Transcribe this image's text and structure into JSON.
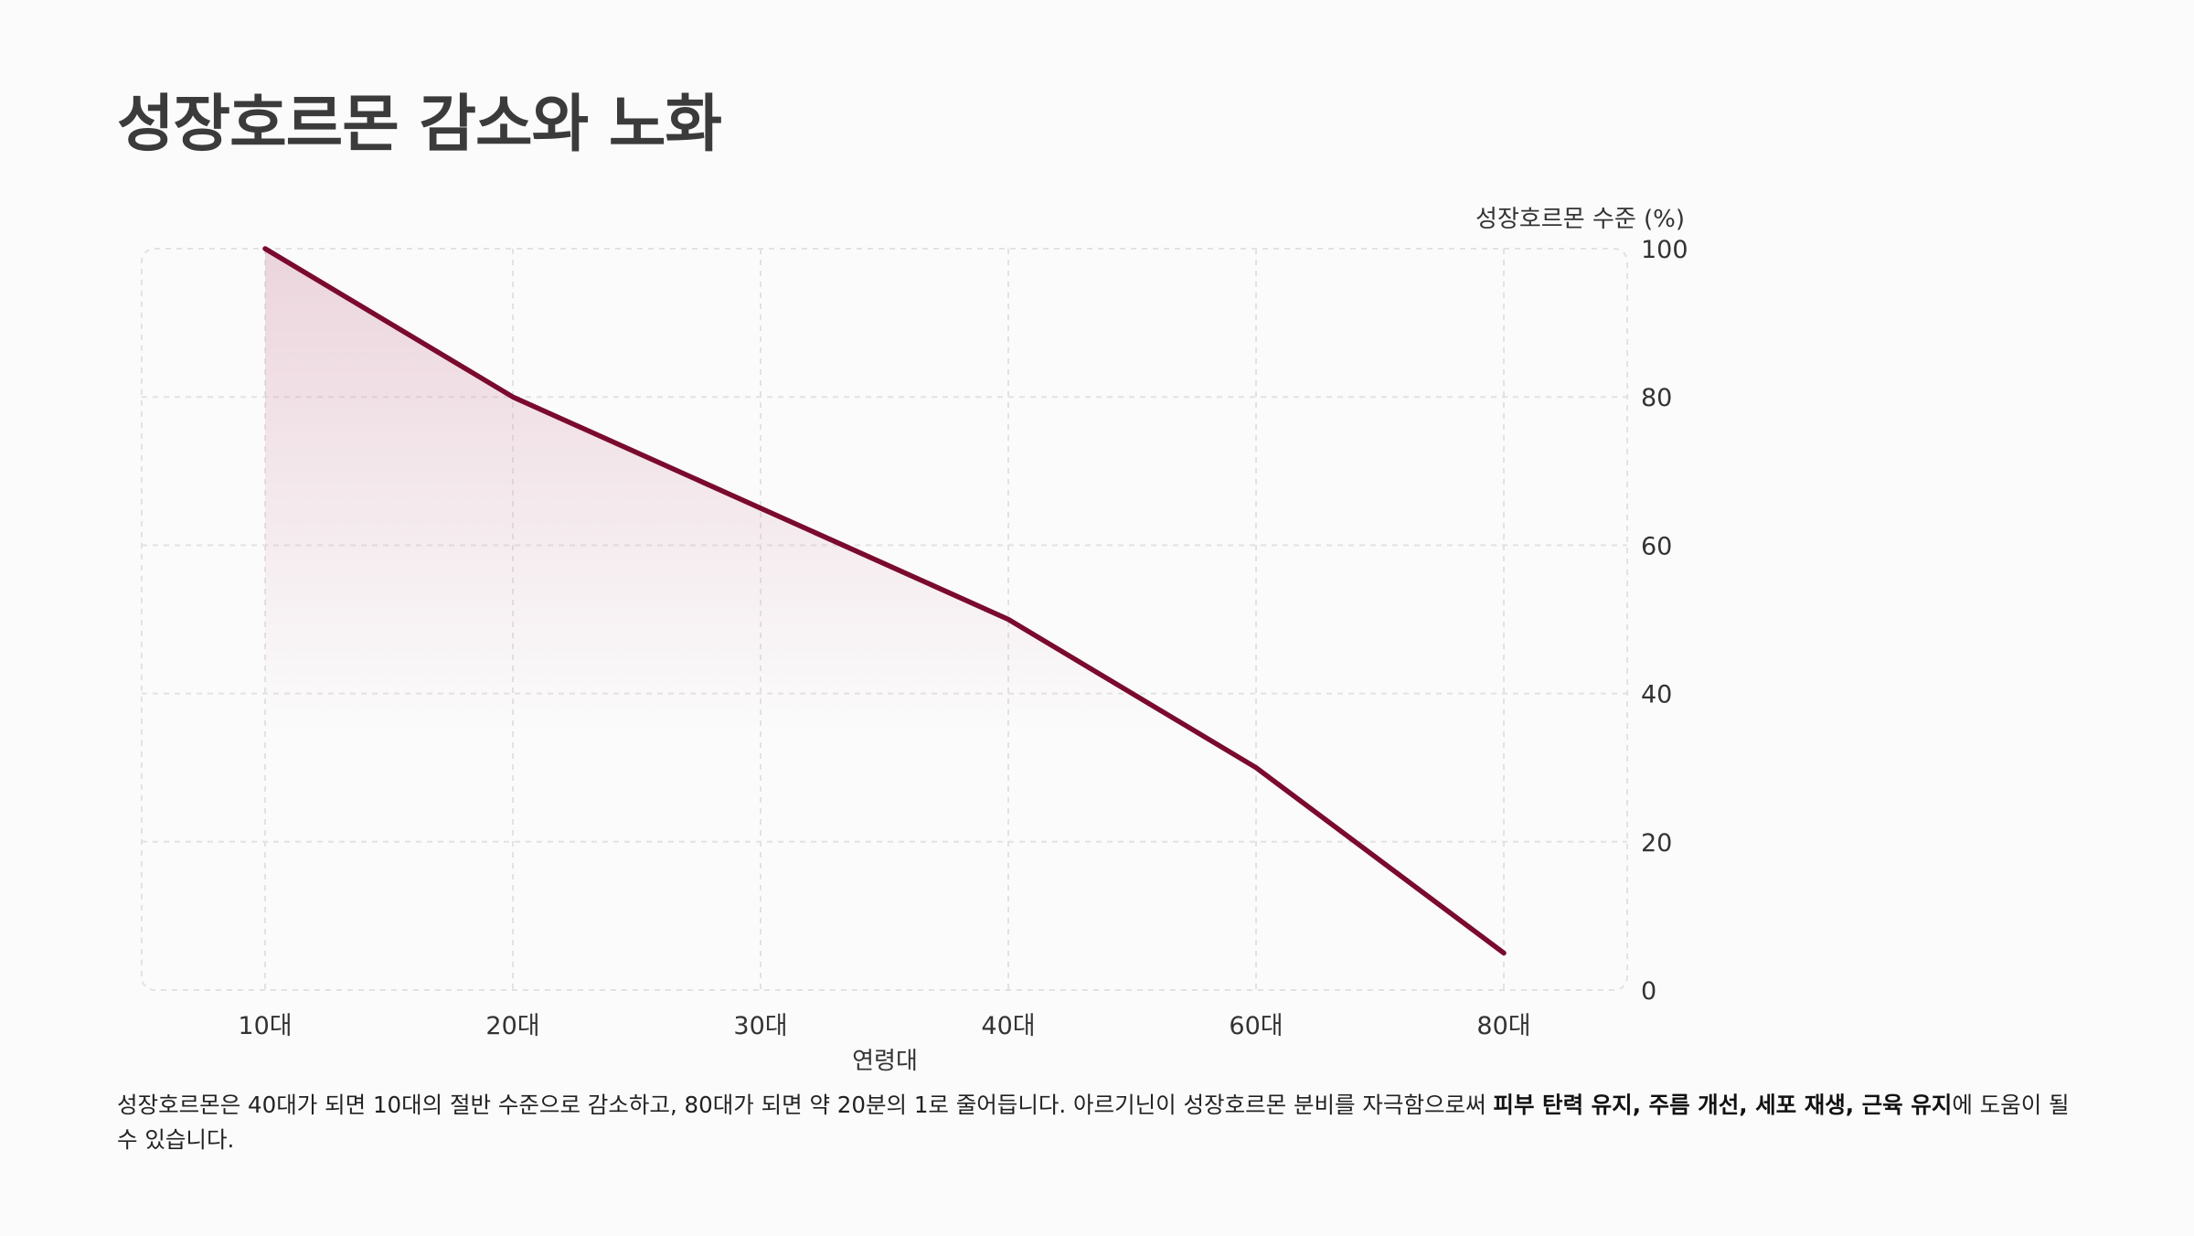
{
  "page": {
    "title": "성장호르몬 감소와 노화"
  },
  "colors": {
    "line": "#7a0a2e",
    "fill_top": "#d9a6b8",
    "grid": "#e2e2e2",
    "background": "#fbfbfb"
  },
  "chart_data": {
    "type": "area",
    "categories": [
      "10대",
      "20대",
      "30대",
      "40대",
      "60대",
      "80대"
    ],
    "series": [
      {
        "name": "성장호르몬 수준 (%)",
        "values": [
          100,
          80,
          65,
          50,
          30,
          5
        ]
      }
    ],
    "xlabel": "연령대",
    "ylabel": "성장호르몬 수준 (%)",
    "ylim": [
      0,
      100
    ],
    "yticks": [
      0,
      20,
      40,
      60,
      80,
      100
    ],
    "y_axis_side": "right",
    "grid": true,
    "legend": "none"
  },
  "description": {
    "part1": "성장호르몬은 40대가 되면 10대의 절반 수준으로 감소하고, 80대가 되면 약 20분의 1로 줄어듭니다. 아르기닌이 성장호르몬 분비를 자극함으로써 ",
    "bold": "피부 탄력 유지, 주름 개선, 세포 재생, 근육 유지",
    "part2": "에 도움이 될 수 있습니다."
  }
}
